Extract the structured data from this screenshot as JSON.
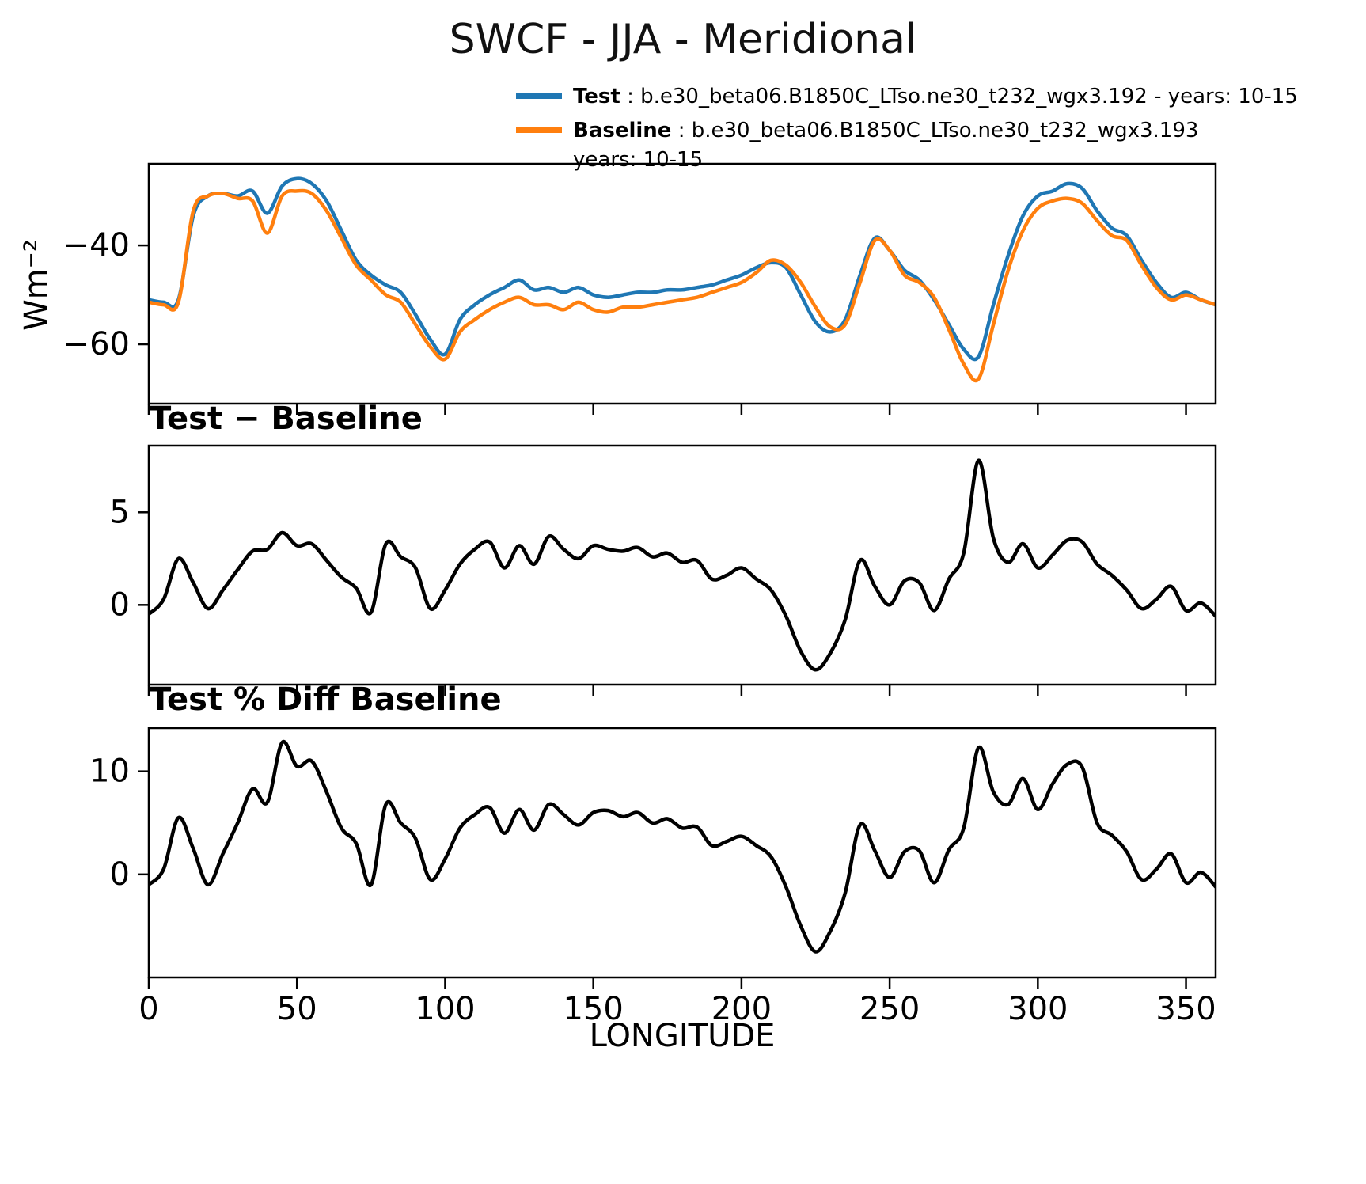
{
  "title": "SWCF - JJA - Meridional",
  "legend": [
    {
      "name": "Test",
      "rest": " : b.e30_beta06.B1850C_LTso.ne30_t232_wgx3.192 - years: 10-15",
      "rest2": "",
      "color": "#1f77b4"
    },
    {
      "name": "Baseline",
      "rest": " : b.e30_beta06.B1850C_LTso.ne30_t232_wgx3.193",
      "rest2": "years: 10-15",
      "color": "#ff7f0e"
    }
  ],
  "axes": {
    "xlabel": "LONGITUDE",
    "ylabel": "Wm⁻²"
  },
  "panel_titles": {
    "diff": "Test − Baseline",
    "pct": "Test % Diff Baseline"
  },
  "chart_data": {
    "type": "line",
    "title": "SWCF - JJA - Meridional",
    "xlabel": "LONGITUDE",
    "legend_position": "top",
    "grid": false,
    "xlim": [
      0,
      360
    ],
    "xticks": [
      0,
      50,
      100,
      150,
      200,
      250,
      300,
      350
    ],
    "x": [
      0,
      5,
      10,
      15,
      20,
      25,
      30,
      35,
      40,
      45,
      50,
      55,
      60,
      65,
      70,
      75,
      80,
      85,
      90,
      95,
      100,
      105,
      110,
      115,
      120,
      125,
      130,
      135,
      140,
      145,
      150,
      155,
      160,
      165,
      170,
      175,
      180,
      185,
      190,
      195,
      200,
      205,
      210,
      215,
      220,
      225,
      230,
      235,
      240,
      245,
      250,
      255,
      260,
      265,
      270,
      275,
      280,
      285,
      290,
      295,
      300,
      305,
      310,
      315,
      320,
      325,
      330,
      335,
      340,
      345,
      350,
      355,
      360
    ],
    "panels": [
      {
        "name": "swcf",
        "ylabel": "Wm⁻²",
        "ylim": [
          -72,
          -23.5
        ],
        "yticks": [
          -40,
          -60
        ],
        "series": [
          {
            "name": "Test",
            "color": "#1f77b4",
            "values": [
              -51,
              -51.5,
              -51,
              -34,
              -30,
              -29.5,
              -30,
              -29,
              -33.5,
              -28,
              -26.5,
              -27.5,
              -31,
              -37,
              -43,
              -46,
              -48,
              -49.5,
              -54,
              -59,
              -62,
              -55,
              -52,
              -50,
              -48.5,
              -47,
              -49,
              -48.5,
              -49.5,
              -48.5,
              -50,
              -50.5,
              -50,
              -49.5,
              -49.5,
              -49,
              -49,
              -48.5,
              -48,
              -47,
              -46,
              -44.5,
              -43.5,
              -44.5,
              -50,
              -55.5,
              -57.5,
              -55,
              -46,
              -38.5,
              -41,
              -45,
              -47,
              -51,
              -56,
              -61,
              -62.5,
              -52,
              -42,
              -34,
              -30,
              -29,
              -27.5,
              -28.5,
              -33,
              -36.5,
              -38,
              -43,
              -47.5,
              -50.5,
              -49.5,
              -51,
              -52
            ]
          },
          {
            "name": "Baseline",
            "color": "#ff7f0e",
            "values": [
              -51.5,
              -52,
              -51.5,
              -33,
              -30,
              -29.5,
              -30.5,
              -31,
              -37.5,
              -30,
              -29,
              -29.5,
              -33,
              -38.5,
              -44,
              -47,
              -50,
              -51.5,
              -56,
              -60.5,
              -63,
              -57.5,
              -55,
              -53,
              -51.5,
              -50.5,
              -52,
              -52,
              -53,
              -51.5,
              -53,
              -53.5,
              -52.5,
              -52.5,
              -52,
              -51.5,
              -51,
              -50.5,
              -49.5,
              -48.5,
              -47.5,
              -45.5,
              -43,
              -44,
              -47.5,
              -52.5,
              -56.5,
              -56,
              -47.5,
              -39,
              -41,
              -46,
              -47.5,
              -50.5,
              -57,
              -64,
              -67,
              -56,
              -45,
              -37,
              -32.5,
              -31,
              -30.5,
              -31.5,
              -35,
              -38,
              -39,
              -44,
              -48.5,
              -51,
              -50,
              -51,
              -52
            ]
          }
        ]
      },
      {
        "name": "difference",
        "title": "Test − Baseline",
        "ylim": [
          -4.3,
          8.6
        ],
        "yticks": [
          5,
          0
        ],
        "series": [
          {
            "name": "Test − Baseline",
            "color": "#000000",
            "values": [
              -0.5,
              0.3,
              2.5,
              1.2,
              -0.2,
              0.8,
              1.9,
              2.9,
              3.0,
              3.9,
              3.2,
              3.3,
              2.4,
              1.5,
              0.9,
              -0.4,
              3.3,
              2.6,
              2.0,
              -0.2,
              0.8,
              2.2,
              3.0,
              3.4,
              2.0,
              3.2,
              2.2,
              3.7,
              3.0,
              2.5,
              3.2,
              3.0,
              2.9,
              3.1,
              2.6,
              2.8,
              2.3,
              2.4,
              1.4,
              1.6,
              2.0,
              1.4,
              0.8,
              -0.6,
              -2.5,
              -3.5,
              -2.6,
              -0.8,
              2.4,
              1.0,
              0.0,
              1.3,
              1.2,
              -0.3,
              1.4,
              2.8,
              7.8,
              3.6,
              2.3,
              3.3,
              2.0,
              2.7,
              3.5,
              3.4,
              2.2,
              1.6,
              0.8,
              -0.2,
              0.3,
              1.0,
              -0.3,
              0.1,
              -0.6
            ]
          }
        ]
      },
      {
        "name": "percent_difference",
        "title": "Test % Diff Baseline",
        "ylim": [
          -10,
          14.2
        ],
        "yticks": [
          10,
          0
        ],
        "series": [
          {
            "name": "Test % Diff Baseline",
            "color": "#000000",
            "values": [
              -1.0,
              0.5,
              5.5,
              2.5,
              -1.0,
              2.0,
              5.0,
              8.3,
              7.0,
              12.8,
              10.5,
              11.0,
              8.0,
              4.5,
              3.0,
              -1.0,
              6.8,
              5.0,
              3.5,
              -0.5,
              1.5,
              4.5,
              5.8,
              6.5,
              4.0,
              6.3,
              4.3,
              6.8,
              5.8,
              4.8,
              6.0,
              6.2,
              5.6,
              6.0,
              5.0,
              5.4,
              4.5,
              4.6,
              2.8,
              3.2,
              3.7,
              2.8,
              1.7,
              -1.2,
              -5.0,
              -7.5,
              -5.5,
              -1.8,
              4.8,
              2.3,
              -0.3,
              2.2,
              2.3,
              -0.8,
              2.4,
              4.5,
              12.3,
              8.0,
              6.8,
              9.3,
              6.3,
              8.8,
              10.7,
              10.4,
              5.0,
              3.8,
              2.2,
              -0.5,
              0.5,
              2.0,
              -0.8,
              0.2,
              -1.2
            ]
          }
        ]
      }
    ]
  }
}
